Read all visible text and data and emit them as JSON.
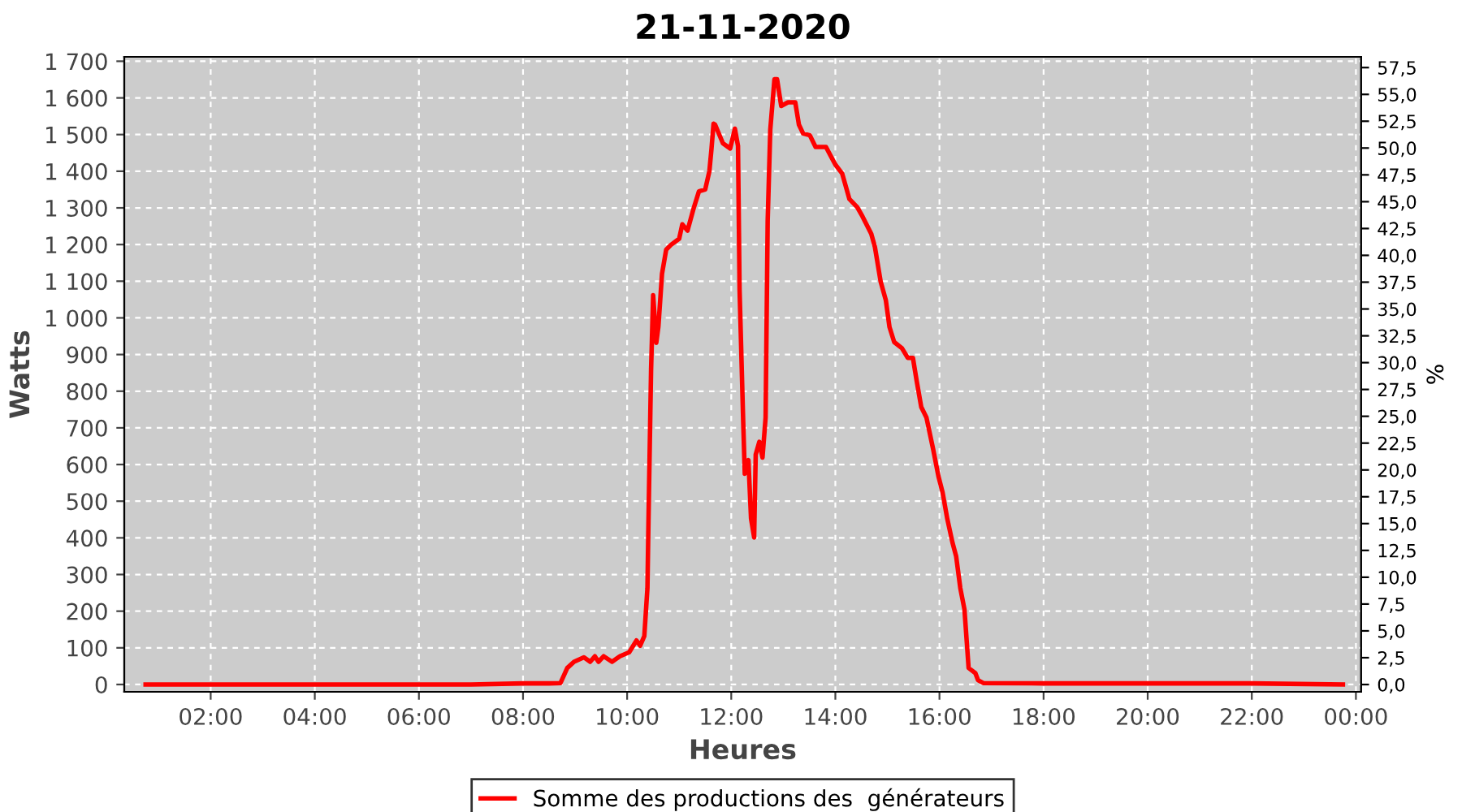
{
  "chart_data": {
    "type": "line",
    "title": "21-11-2020",
    "xlabel": "Heures",
    "ylabel": "Watts",
    "y2label": "%",
    "xlim": [
      0.34,
      24.1
    ],
    "ylim": [
      -20,
      1712
    ],
    "y2lim": [
      -0.68,
      58.5
    ],
    "xticks": [
      {
        "value": 2,
        "label": "02:00"
      },
      {
        "value": 4,
        "label": "04:00"
      },
      {
        "value": 6,
        "label": "06:00"
      },
      {
        "value": 8,
        "label": "08:00"
      },
      {
        "value": 10,
        "label": "10:00"
      },
      {
        "value": 12,
        "label": "12:00"
      },
      {
        "value": 14,
        "label": "14:00"
      },
      {
        "value": 16,
        "label": "16:00"
      },
      {
        "value": 18,
        "label": "18:00"
      },
      {
        "value": 20,
        "label": "20:00"
      },
      {
        "value": 22,
        "label": "22:00"
      },
      {
        "value": 24,
        "label": "00:00"
      }
    ],
    "yticks": [
      0,
      100,
      200,
      300,
      400,
      500,
      600,
      700,
      800,
      900,
      {
        "value": 1000,
        "label": "1 000"
      },
      {
        "value": 1100,
        "label": "1 100"
      },
      {
        "value": 1200,
        "label": "1 200"
      },
      {
        "value": 1300,
        "label": "1 300"
      },
      {
        "value": 1400,
        "label": "1 400"
      },
      {
        "value": 1500,
        "label": "1 500"
      },
      {
        "value": 1600,
        "label": "1 600"
      },
      {
        "value": 1700,
        "label": "1 700"
      }
    ],
    "y2ticks": [
      {
        "value": 0,
        "label": "0,0"
      },
      {
        "value": 2.5,
        "label": "2,5"
      },
      {
        "value": 5,
        "label": "5,0"
      },
      {
        "value": 7.5,
        "label": "7,5"
      },
      {
        "value": 10,
        "label": "10,0"
      },
      {
        "value": 12.5,
        "label": "12,5"
      },
      {
        "value": 15,
        "label": "15,0"
      },
      {
        "value": 17.5,
        "label": "17,5"
      },
      {
        "value": 20,
        "label": "20,0"
      },
      {
        "value": 22.5,
        "label": "22,5"
      },
      {
        "value": 25,
        "label": "25,0"
      },
      {
        "value": 27.5,
        "label": "27,5"
      },
      {
        "value": 30,
        "label": "30,0"
      },
      {
        "value": 32.5,
        "label": "32,5"
      },
      {
        "value": 35,
        "label": "35,0"
      },
      {
        "value": 37.5,
        "label": "37,5"
      },
      {
        "value": 40,
        "label": "40,0"
      },
      {
        "value": 42.5,
        "label": "42,5"
      },
      {
        "value": 45,
        "label": "45,0"
      },
      {
        "value": 47.5,
        "label": "47,5"
      },
      {
        "value": 50,
        "label": "50,0"
      },
      {
        "value": 52.5,
        "label": "52,5"
      },
      {
        "value": 55,
        "label": "55,0"
      },
      {
        "value": 57.5,
        "label": "57,5"
      }
    ],
    "grid": true,
    "legend": "bottom",
    "line_style": "solid",
    "series": [
      {
        "name": "Somme des productions des  générateurs",
        "color": "#ff0000",
        "x": [
          0.75,
          2,
          4,
          6,
          7,
          8,
          8.5,
          8.72,
          8.85,
          8.98,
          9.17,
          9.29,
          9.38,
          9.45,
          9.55,
          9.71,
          9.86,
          10.04,
          10.18,
          10.25,
          10.33,
          10.39,
          10.41,
          10.46,
          10.5,
          10.56,
          10.6,
          10.67,
          10.75,
          10.84,
          11.0,
          11.06,
          11.16,
          11.28,
          11.38,
          11.5,
          11.58,
          11.62,
          11.66,
          11.69,
          11.84,
          11.98,
          12.07,
          12.13,
          12.16,
          12.23,
          12.26,
          12.33,
          12.38,
          12.44,
          12.47,
          12.54,
          12.6,
          12.66,
          12.7,
          12.75,
          12.83,
          12.88,
          12.96,
          13.09,
          13.23,
          13.3,
          13.38,
          13.51,
          13.62,
          13.82,
          14.0,
          14.13,
          14.27,
          14.42,
          14.52,
          14.69,
          14.76,
          14.87,
          14.97,
          15.04,
          15.13,
          15.28,
          15.39,
          15.49,
          15.56,
          15.65,
          15.75,
          15.88,
          15.98,
          16.06,
          16.15,
          16.25,
          16.32,
          16.4,
          16.48,
          16.56,
          16.69,
          16.74,
          16.84,
          18,
          20,
          22,
          23.75
        ],
        "values": [
          0,
          0,
          0,
          0,
          0,
          3,
          3,
          4,
          45,
          62,
          74,
          62,
          77,
          62,
          77,
          62,
          77,
          88,
          120,
          106,
          132,
          263,
          445,
          859,
          1062,
          932,
          975,
          1120,
          1186,
          1199,
          1216,
          1255,
          1238,
          1300,
          1345,
          1350,
          1400,
          1460,
          1530,
          1527,
          1476,
          1462,
          1516,
          1469,
          1077,
          715,
          575,
          612,
          453,
          401,
          627,
          662,
          619,
          728,
          1265,
          1513,
          1651,
          1651,
          1578,
          1588,
          1588,
          1527,
          1503,
          1498,
          1466,
          1466,
          1418,
          1394,
          1324,
          1302,
          1277,
          1229,
          1193,
          1099,
          1048,
          975,
          934,
          917,
          891,
          891,
          830,
          757,
          728,
          641,
          568,
          524,
          452,
          387,
          350,
          263,
          205,
          45,
          31,
          12,
          4,
          3,
          3,
          3,
          0
        ]
      }
    ]
  }
}
